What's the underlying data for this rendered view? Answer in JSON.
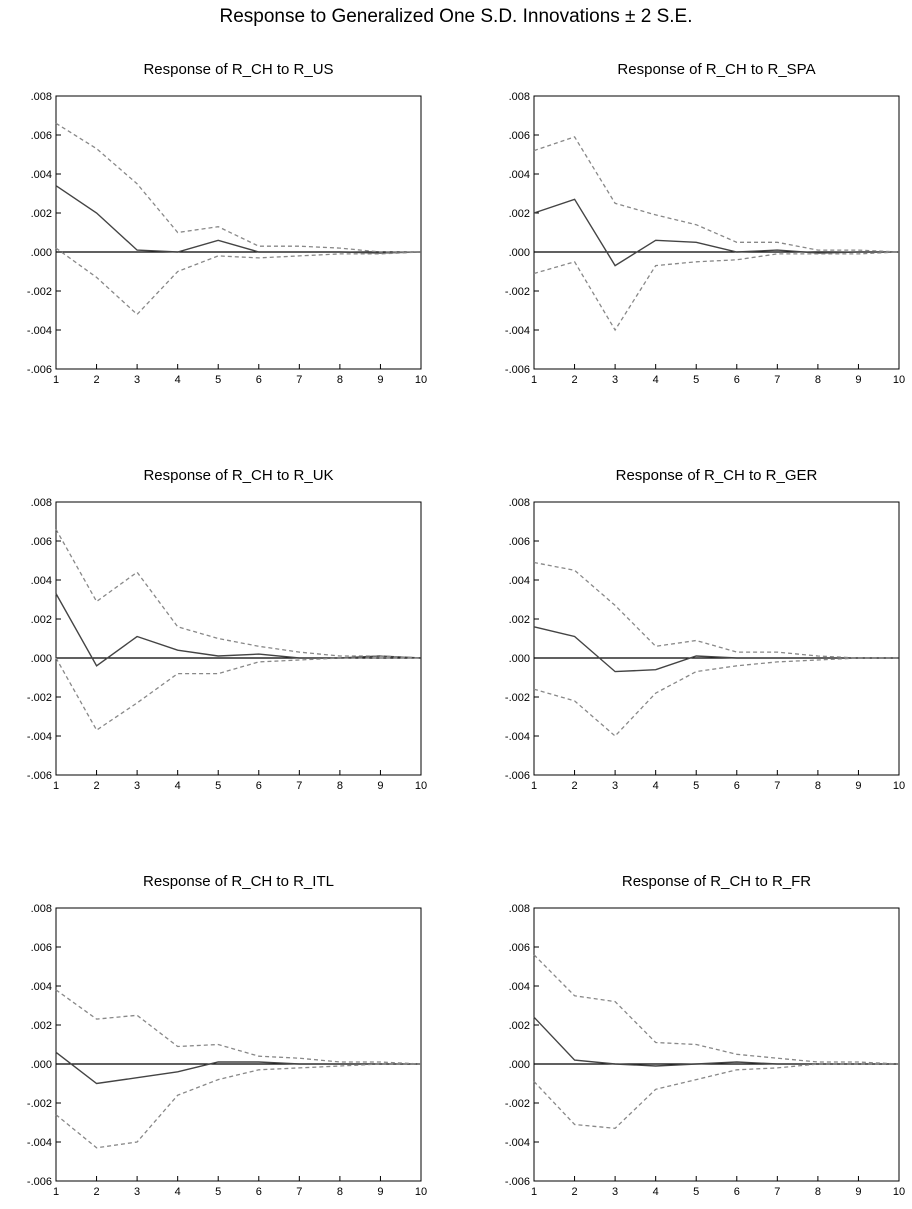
{
  "title": "Response to Generalized One S.D. Innovations ± 2 S.E.",
  "colors": {
    "response": "#444444",
    "bands": "#888888",
    "zero_line": "#000000",
    "frame": "#000000"
  },
  "chart_data": [
    {
      "type": "line",
      "title": "Response of R_CH to R_US",
      "x": [
        1,
        2,
        3,
        4,
        5,
        6,
        7,
        8,
        9,
        10
      ],
      "xlim": [
        1,
        10
      ],
      "ylim": [
        -0.006,
        0.008
      ],
      "y_ticks": [
        ".008",
        ".006",
        ".004",
        ".002",
        ".000",
        "-.002",
        "-.004",
        "-.006"
      ],
      "x_ticks": [
        "1",
        "2",
        "3",
        "4",
        "5",
        "6",
        "7",
        "8",
        "9",
        "10"
      ],
      "series": [
        {
          "style": "solid",
          "values": [
            0.0034,
            0.002,
            0.0001,
            0.0,
            0.0006,
            0.0,
            0.0,
            0.0,
            -5e-05,
            0.0
          ]
        },
        {
          "style": "dashed",
          "values": [
            0.0066,
            0.0053,
            0.0035,
            0.001,
            0.0013,
            0.0003,
            0.0003,
            0.0002,
            0.0,
            0.0
          ]
        },
        {
          "style": "dashed",
          "values": [
            0.0002,
            -0.0013,
            -0.0032,
            -0.001,
            -0.0002,
            -0.0003,
            -0.0002,
            -0.0001,
            -0.0001,
            0.0
          ]
        }
      ]
    },
    {
      "type": "line",
      "title": "Response of R_CH to R_SPA",
      "x": [
        1,
        2,
        3,
        4,
        5,
        6,
        7,
        8,
        9,
        10
      ],
      "xlim": [
        1,
        10
      ],
      "ylim": [
        -0.006,
        0.008
      ],
      "y_ticks": [
        ".008",
        ".006",
        ".004",
        ".002",
        ".000",
        "-.002",
        "-.004",
        "-.006"
      ],
      "x_ticks": [
        "1",
        "2",
        "3",
        "4",
        "5",
        "6",
        "7",
        "8",
        "9",
        "10"
      ],
      "series": [
        {
          "style": "solid",
          "values": [
            0.002,
            0.0027,
            -0.0007,
            0.0006,
            0.0005,
            0.0,
            0.0001,
            -5e-05,
            0.0,
            0.0
          ]
        },
        {
          "style": "dashed",
          "values": [
            0.0052,
            0.0059,
            0.0025,
            0.0019,
            0.0014,
            0.0005,
            0.0005,
            0.0001,
            0.0001,
            0.0
          ]
        },
        {
          "style": "dashed",
          "values": [
            -0.0011,
            -0.0005,
            -0.004,
            -0.0007,
            -0.0005,
            -0.0004,
            -0.0001,
            -0.0001,
            -0.0001,
            0.0
          ]
        }
      ]
    },
    {
      "type": "line",
      "title": "Response of R_CH to R_UK",
      "x": [
        1,
        2,
        3,
        4,
        5,
        6,
        7,
        8,
        9,
        10
      ],
      "xlim": [
        1,
        10
      ],
      "ylim": [
        -0.006,
        0.008
      ],
      "y_ticks": [
        ".008",
        ".006",
        ".004",
        ".002",
        ".000",
        "-.002",
        "-.004",
        "-.006"
      ],
      "x_ticks": [
        "1",
        "2",
        "3",
        "4",
        "5",
        "6",
        "7",
        "8",
        "9",
        "10"
      ],
      "series": [
        {
          "style": "solid",
          "values": [
            0.0033,
            -0.0004,
            0.0011,
            0.0004,
            0.0001,
            0.0002,
            0.0,
            0.0,
            0.0001,
            0.0
          ]
        },
        {
          "style": "dashed",
          "values": [
            0.0066,
            0.0029,
            0.0044,
            0.0016,
            0.001,
            0.0006,
            0.0003,
            0.0001,
            0.0001,
            0.0
          ]
        },
        {
          "style": "dashed",
          "values": [
            0.0,
            -0.0037,
            -0.0023,
            -0.0008,
            -0.0008,
            -0.0002,
            -0.0001,
            0.0,
            0.0,
            0.0
          ]
        }
      ]
    },
    {
      "type": "line",
      "title": "Response of R_CH to R_GER",
      "x": [
        1,
        2,
        3,
        4,
        5,
        6,
        7,
        8,
        9,
        10
      ],
      "xlim": [
        1,
        10
      ],
      "ylim": [
        -0.006,
        0.008
      ],
      "y_ticks": [
        ".008",
        ".006",
        ".004",
        ".002",
        ".000",
        "-.002",
        "-.004",
        "-.006"
      ],
      "x_ticks": [
        "1",
        "2",
        "3",
        "4",
        "5",
        "6",
        "7",
        "8",
        "9",
        "10"
      ],
      "series": [
        {
          "style": "solid",
          "values": [
            0.0016,
            0.0011,
            -0.0007,
            -0.0006,
            0.0001,
            0.0,
            0.0,
            0.0,
            0.0,
            0.0
          ]
        },
        {
          "style": "dashed",
          "values": [
            0.0049,
            0.0045,
            0.0027,
            0.0006,
            0.0009,
            0.0003,
            0.0003,
            0.0001,
            0.0,
            0.0
          ]
        },
        {
          "style": "dashed",
          "values": [
            -0.0016,
            -0.0022,
            -0.004,
            -0.0018,
            -0.0007,
            -0.0004,
            -0.0002,
            -0.0001,
            0.0,
            0.0
          ]
        }
      ]
    },
    {
      "type": "line",
      "title": "Response of R_CH to R_ITL",
      "x": [
        1,
        2,
        3,
        4,
        5,
        6,
        7,
        8,
        9,
        10
      ],
      "xlim": [
        1,
        10
      ],
      "ylim": [
        -0.006,
        0.008
      ],
      "y_ticks": [
        ".008",
        ".006",
        ".004",
        ".002",
        ".000",
        "-.002",
        "-.004",
        "-.006"
      ],
      "x_ticks": [
        "1",
        "2",
        "3",
        "4",
        "5",
        "6",
        "7",
        "8",
        "9",
        "10"
      ],
      "series": [
        {
          "style": "solid",
          "values": [
            0.0006,
            -0.001,
            -0.0007,
            -0.0004,
            0.0001,
            0.0001,
            0.0,
            0.0,
            0.0,
            0.0
          ]
        },
        {
          "style": "dashed",
          "values": [
            0.0038,
            0.0023,
            0.0025,
            0.0009,
            0.001,
            0.0004,
            0.0003,
            0.0001,
            0.0001,
            0.0
          ]
        },
        {
          "style": "dashed",
          "values": [
            -0.0026,
            -0.0043,
            -0.004,
            -0.0016,
            -0.0008,
            -0.0003,
            -0.0002,
            -0.0001,
            0.0,
            0.0
          ]
        }
      ]
    },
    {
      "type": "line",
      "title": "Response of R_CH to R_FR",
      "x": [
        1,
        2,
        3,
        4,
        5,
        6,
        7,
        8,
        9,
        10
      ],
      "xlim": [
        1,
        10
      ],
      "ylim": [
        -0.006,
        0.008
      ],
      "y_ticks": [
        ".008",
        ".006",
        ".004",
        ".002",
        ".000",
        "-.002",
        "-.004",
        "-.006"
      ],
      "x_ticks": [
        "1",
        "2",
        "3",
        "4",
        "5",
        "6",
        "7",
        "8",
        "9",
        "10"
      ],
      "series": [
        {
          "style": "solid",
          "values": [
            0.0024,
            0.0002,
            0.0,
            -0.0001,
            0.0,
            0.0001,
            0.0,
            0.0,
            0.0,
            0.0
          ]
        },
        {
          "style": "dashed",
          "values": [
            0.0056,
            0.0035,
            0.0032,
            0.0011,
            0.001,
            0.0005,
            0.0003,
            0.0001,
            0.0001,
            0.0
          ]
        },
        {
          "style": "dashed",
          "values": [
            -0.0009,
            -0.0031,
            -0.0033,
            -0.0013,
            -0.0008,
            -0.0003,
            -0.0002,
            0.0,
            0.0,
            0.0
          ]
        }
      ]
    }
  ]
}
